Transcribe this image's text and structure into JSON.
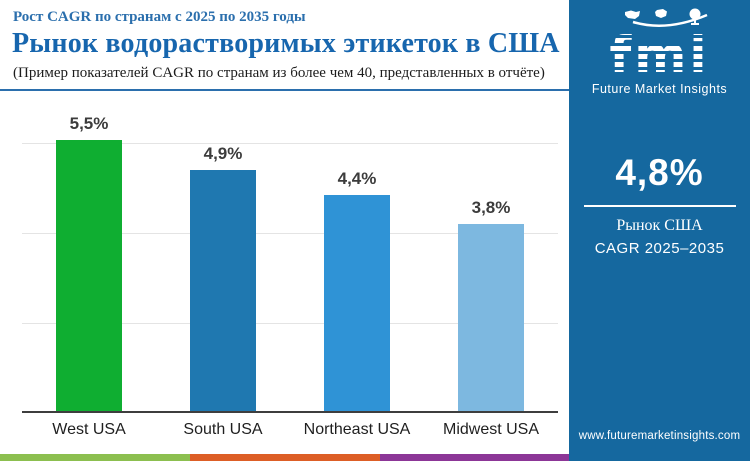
{
  "header": {
    "kicker": "Рост CAGR по странам с 2025 по 2035 годы",
    "title": "Рынок водорастворимых этикеток в США",
    "subtitle": "(Пример показателей CAGR по странам из более чем 40, представленных в отчёте)"
  },
  "chart_data": {
    "type": "bar",
    "categories": [
      "West USA",
      "South USA",
      "Northeast USA",
      "Midwest USA"
    ],
    "values": [
      5.5,
      4.9,
      4.4,
      3.8
    ],
    "value_labels": [
      "5,5%",
      "4,9%",
      "4,4%",
      "3,8%"
    ],
    "bar_colors": [
      "#0fae31",
      "#1f78b0",
      "#2f93d6",
      "#7db8e0"
    ],
    "title": "Рынок водорастворимых этикеток в США",
    "xlabel": "",
    "ylabel": "",
    "ylim": [
      0,
      6
    ],
    "grid": "3 horizontal gridlines, no y-axis tick labels",
    "legend": "none"
  },
  "sidebar": {
    "logo_text": "fmi",
    "logo_subtext": "Future Market Insights",
    "metric_value": "4,8%",
    "metric_label_line1": "Рынок США",
    "metric_label_line2": "CAGR 2025–2035",
    "website": "www.futuremarketinsights.com",
    "background_color": "#15689f"
  },
  "footer_strip": {
    "colors": [
      "#8cbf4f",
      "#dd5e26",
      "#8c3697"
    ]
  }
}
